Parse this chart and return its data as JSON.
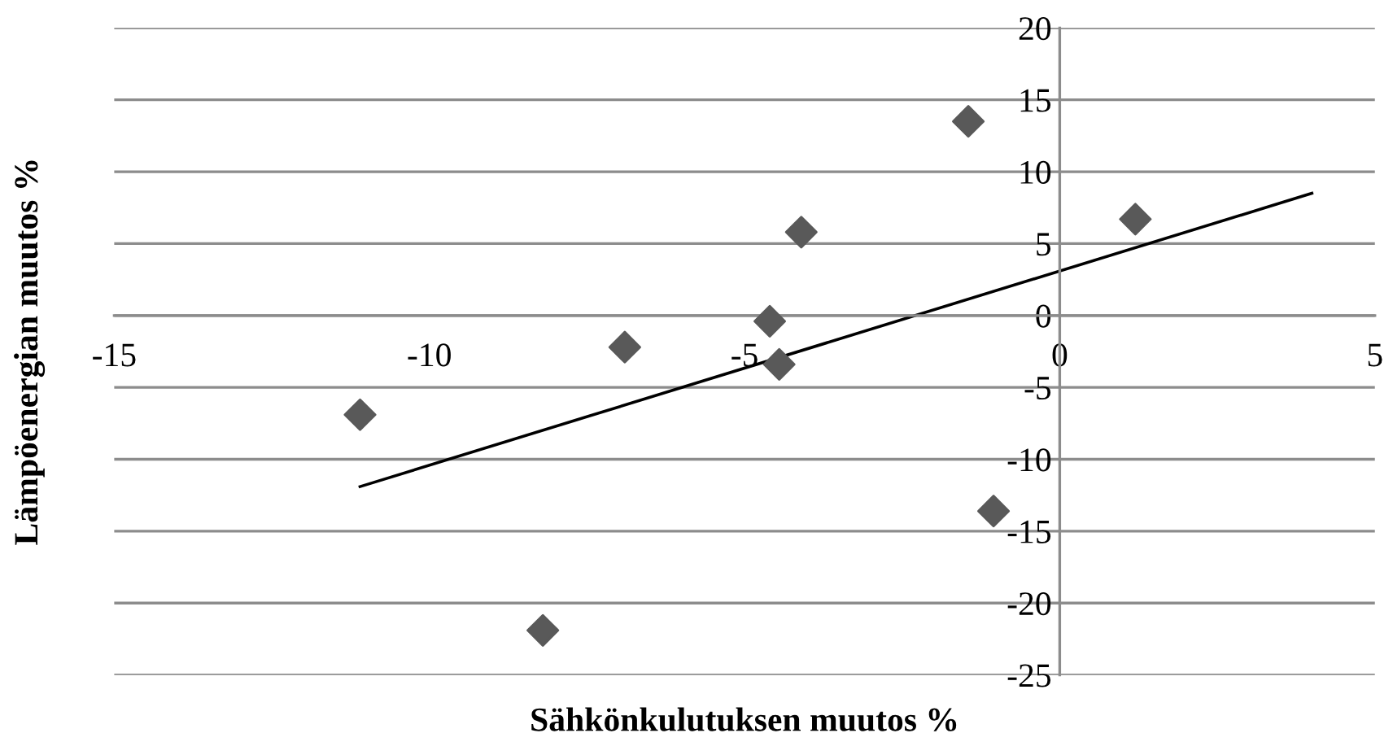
{
  "chart_data": {
    "type": "scatter",
    "xlabel": "Sähkönkulutuksen muutos %",
    "ylabel": "Lämpöenergian muutos %",
    "xlim": [
      -15,
      5
    ],
    "xticks": [
      -15,
      -10,
      -5,
      0,
      5
    ],
    "ylim": [
      -25,
      20
    ],
    "yticks": [
      -25,
      -20,
      -15,
      -10,
      -5,
      0,
      5,
      10,
      15,
      20
    ],
    "grid": "y",
    "marker": "diamond",
    "series": [
      {
        "color": "#595959",
        "x": [
          -11.1,
          -8.2,
          -6.9,
          -4.6,
          -4.45,
          -4.1,
          -1.45,
          -1.05,
          1.2
        ],
        "values": [
          -6.9,
          -21.9,
          -2.2,
          -0.4,
          -3.4,
          5.8,
          13.5,
          -13.6,
          6.7
        ]
      },
      {
        "type": "line",
        "color": "#000000",
        "marker": "none",
        "x": [
          -11.1,
          4.0
        ],
        "values": [
          -11.9,
          8.5
        ]
      }
    ]
  }
}
